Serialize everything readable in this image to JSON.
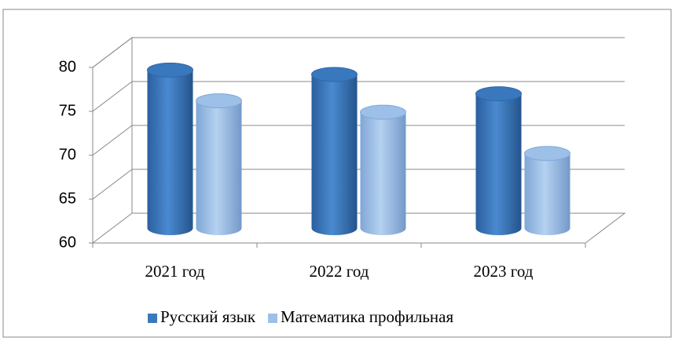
{
  "chart_data": {
    "type": "bar3d",
    "categories": [
      "2021 год",
      "2022 год",
      "2023 год"
    ],
    "series": [
      {
        "name": "Русский язык",
        "color": "#3a78bd",
        "values": [
          78,
          77.5,
          75.3
        ]
      },
      {
        "name": "Математика профильная",
        "color": "#9cc0e8",
        "values": [
          74.5,
          73.2,
          68.5
        ]
      }
    ],
    "ylim": [
      60,
      80
    ],
    "yticks": [
      60,
      65,
      70,
      75,
      80
    ],
    "grid": true,
    "legend": "bottom"
  }
}
